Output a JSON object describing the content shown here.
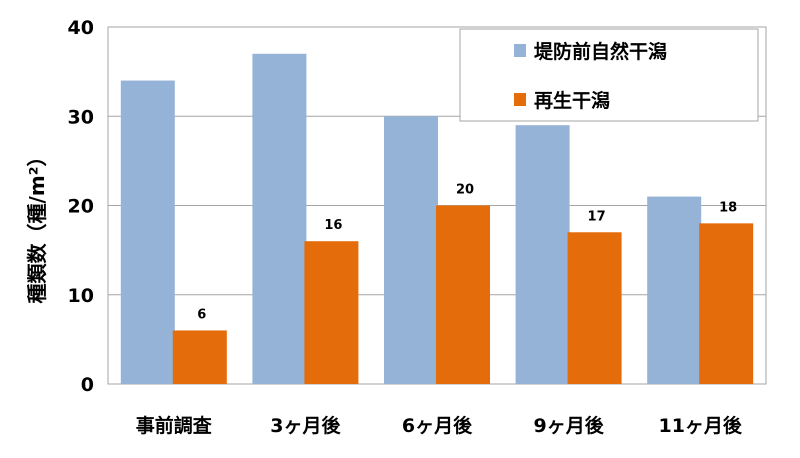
{
  "chart_data": {
    "type": "bar",
    "title": "",
    "xlabel": "",
    "ylabel": "種類数（種/m²）",
    "ylim": [
      0,
      40
    ],
    "yticks": [
      "0",
      "10",
      "20",
      "30",
      "40"
    ],
    "ytick_values": [
      0,
      10,
      20,
      30,
      40
    ],
    "grid": true,
    "legend_position": "top-right",
    "categories": [
      "事前調査",
      "3ヶ月後",
      "6ヶ月後",
      "9ヶ月後",
      "11ヶ月後"
    ],
    "series": [
      {
        "name": "堤防前自然干潟",
        "color": "#95b3d7",
        "values": [
          34,
          37,
          30,
          29,
          21
        ],
        "show_labels": false
      },
      {
        "name": "再生干潟",
        "color": "#e46c0a",
        "values": [
          6,
          16,
          20,
          17,
          18
        ],
        "show_labels": true
      }
    ]
  }
}
